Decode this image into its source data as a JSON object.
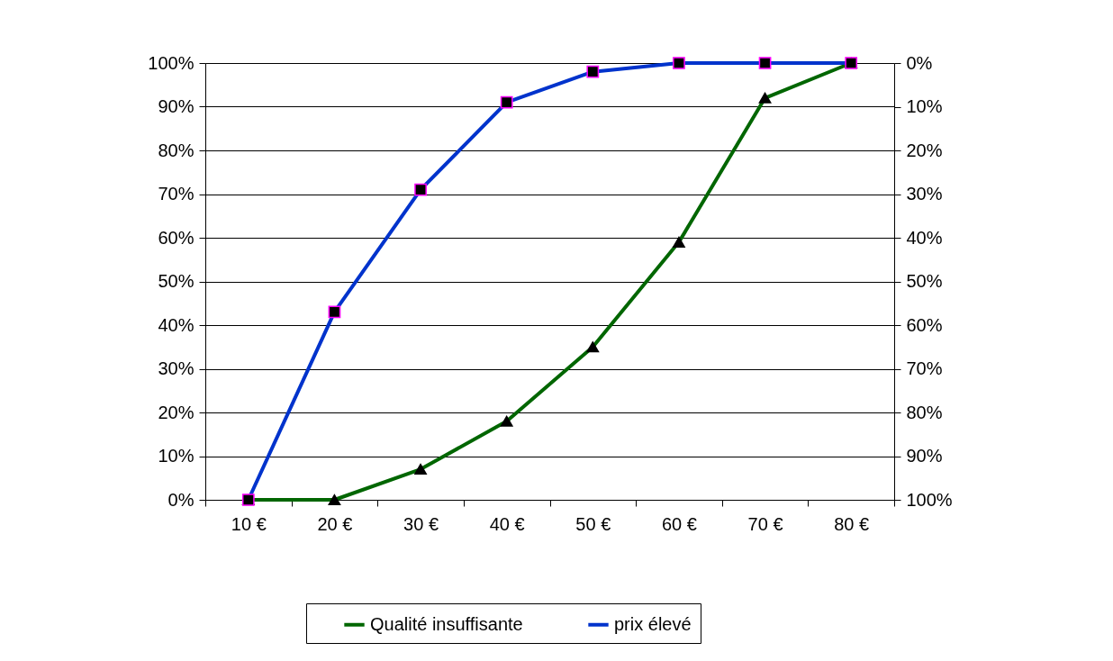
{
  "chart_data": {
    "type": "line",
    "categories": [
      "10 €",
      "20 €",
      "30 €",
      "40 €",
      "50 €",
      "60 €",
      "70 €",
      "80 €"
    ],
    "series": [
      {
        "name": "Qualité insuffisante",
        "color": "#006600",
        "marker": "triangle",
        "values": [
          0,
          0,
          7,
          18,
          35,
          59,
          92,
          100
        ]
      },
      {
        "name": "prix élevé",
        "color": "#0033cc",
        "marker": "square",
        "values": [
          0,
          43,
          71,
          91,
          98,
          100,
          100,
          100
        ]
      }
    ],
    "ylim": [
      0,
      100
    ],
    "yticks": [
      {
        "value": 0,
        "label": "0%"
      },
      {
        "value": 10,
        "label": "10%"
      },
      {
        "value": 20,
        "label": "20%"
      },
      {
        "value": 30,
        "label": "30%"
      },
      {
        "value": 40,
        "label": "40%"
      },
      {
        "value": 50,
        "label": "50%"
      },
      {
        "value": 60,
        "label": "60%"
      },
      {
        "value": 70,
        "label": "70%"
      },
      {
        "value": 80,
        "label": "80%"
      },
      {
        "value": 90,
        "label": "90%"
      },
      {
        "value": 100,
        "label": "100%"
      }
    ],
    "y2lim": [
      100,
      0
    ],
    "y2ticks": [
      {
        "value": 0,
        "label": "0%"
      },
      {
        "value": 10,
        "label": "10%"
      },
      {
        "value": 20,
        "label": "20%"
      },
      {
        "value": 30,
        "label": "30%"
      },
      {
        "value": 40,
        "label": "40%"
      },
      {
        "value": 50,
        "label": "50%"
      },
      {
        "value": 60,
        "label": "60%"
      },
      {
        "value": 70,
        "label": "70%"
      },
      {
        "value": 80,
        "label": "80%"
      },
      {
        "value": 90,
        "label": "90%"
      },
      {
        "value": 100,
        "label": "100%"
      }
    ],
    "grid": "y",
    "legend": "bottom",
    "line_style": "solid"
  }
}
